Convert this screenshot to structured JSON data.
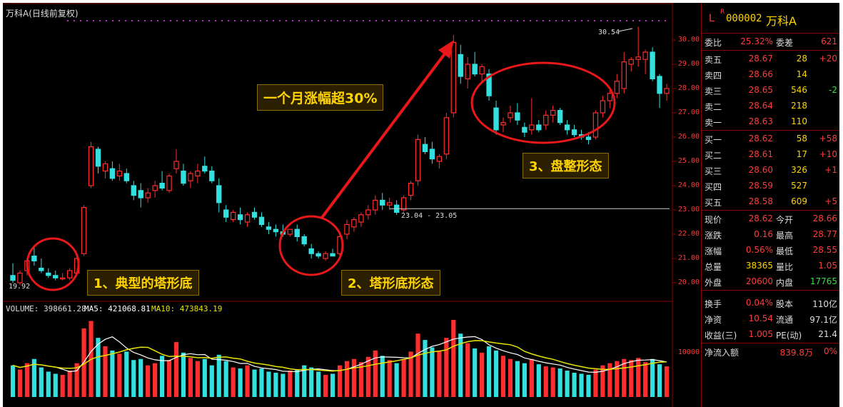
{
  "window_title": "万科A(日线前复权)",
  "callouts": {
    "rise": "一个月涨幅超30%",
    "pattern1": "1、典型的塔形底",
    "pattern2": "2、塔形底形态",
    "pattern3": "3、盘整形态"
  },
  "annotations": {
    "low_price": "19.92",
    "high_price": "30.54",
    "range": "23.04 - 23.05"
  },
  "volume_line": {
    "volume": "VOLUME: 398661.28",
    "ma5": "MA5: 421068.81",
    "ma10": "MA10: 473843.19"
  },
  "colors": {
    "up": "#ff2d2d",
    "down": "#33e0e0",
    "ma5": "#ffffff",
    "ma10": "#e5e500",
    "callout_text": "#ffd400",
    "ellipse": "#e8171a",
    "arrow": "#e8171a"
  },
  "chart_data": {
    "type": "candlestick",
    "price_axis": {
      "range": [
        19.5,
        30.5
      ],
      "ticks": [
        "30.00",
        "29.00",
        "28.00",
        "27.00",
        "26.00",
        "25.00",
        "24.00",
        "23.00",
        "22.00",
        "21.00",
        "20.00"
      ]
    },
    "volume_axis": {
      "ticks": [
        "10000"
      ]
    },
    "candles": [
      {
        "o": 20.3,
        "h": 20.8,
        "l": 20.0,
        "c": 20.1
      },
      {
        "o": 20.0,
        "h": 20.5,
        "l": 19.9,
        "c": 20.4
      },
      {
        "o": 20.5,
        "h": 21.0,
        "l": 20.3,
        "c": 20.9
      },
      {
        "o": 21.1,
        "h": 21.5,
        "l": 20.7,
        "c": 20.9
      },
      {
        "o": 20.6,
        "h": 21.0,
        "l": 20.4,
        "c": 20.5
      },
      {
        "o": 20.4,
        "h": 20.6,
        "l": 20.2,
        "c": 20.3
      },
      {
        "o": 20.3,
        "h": 20.5,
        "l": 20.1,
        "c": 20.2
      },
      {
        "o": 20.2,
        "h": 20.4,
        "l": 20.1,
        "c": 20.2
      },
      {
        "o": 20.2,
        "h": 20.6,
        "l": 20.1,
        "c": 20.5
      },
      {
        "o": 20.4,
        "h": 21.1,
        "l": 20.3,
        "c": 21.0
      },
      {
        "o": 21.2,
        "h": 23.2,
        "l": 21.1,
        "c": 23.1
      },
      {
        "o": 24.0,
        "h": 25.8,
        "l": 23.9,
        "c": 25.6
      },
      {
        "o": 25.5,
        "h": 25.6,
        "l": 24.5,
        "c": 24.8
      },
      {
        "o": 24.6,
        "h": 25.0,
        "l": 24.3,
        "c": 24.9
      },
      {
        "o": 24.7,
        "h": 25.0,
        "l": 24.2,
        "c": 24.3
      },
      {
        "o": 24.4,
        "h": 24.9,
        "l": 24.2,
        "c": 24.6
      },
      {
        "o": 24.5,
        "h": 24.7,
        "l": 24.1,
        "c": 24.2
      },
      {
        "o": 24.0,
        "h": 24.2,
        "l": 23.4,
        "c": 23.6
      },
      {
        "o": 23.8,
        "h": 24.1,
        "l": 23.1,
        "c": 23.5
      },
      {
        "o": 23.5,
        "h": 23.9,
        "l": 23.3,
        "c": 23.7
      },
      {
        "o": 23.8,
        "h": 24.2,
        "l": 23.5,
        "c": 24.0
      },
      {
        "o": 24.1,
        "h": 24.6,
        "l": 23.8,
        "c": 23.9
      },
      {
        "o": 23.8,
        "h": 24.5,
        "l": 23.7,
        "c": 24.4
      },
      {
        "o": 24.7,
        "h": 25.5,
        "l": 24.5,
        "c": 25.0
      },
      {
        "o": 24.6,
        "h": 24.9,
        "l": 24.0,
        "c": 24.1
      },
      {
        "o": 24.2,
        "h": 24.6,
        "l": 23.9,
        "c": 24.5
      },
      {
        "o": 24.4,
        "h": 24.9,
        "l": 24.1,
        "c": 24.6
      },
      {
        "o": 24.8,
        "h": 25.2,
        "l": 24.5,
        "c": 24.6
      },
      {
        "o": 24.6,
        "h": 24.8,
        "l": 24.1,
        "c": 24.2
      },
      {
        "o": 24.0,
        "h": 24.3,
        "l": 22.9,
        "c": 23.3
      },
      {
        "o": 23.0,
        "h": 23.2,
        "l": 22.5,
        "c": 22.7
      },
      {
        "o": 22.6,
        "h": 23.0,
        "l": 22.5,
        "c": 22.9
      },
      {
        "o": 22.8,
        "h": 23.1,
        "l": 22.4,
        "c": 22.6
      },
      {
        "o": 22.5,
        "h": 22.9,
        "l": 22.3,
        "c": 22.8
      },
      {
        "o": 22.9,
        "h": 23.1,
        "l": 22.6,
        "c": 22.7
      },
      {
        "o": 22.7,
        "h": 22.9,
        "l": 22.3,
        "c": 22.4
      },
      {
        "o": 22.3,
        "h": 22.5,
        "l": 22.0,
        "c": 22.2
      },
      {
        "o": 22.2,
        "h": 22.4,
        "l": 21.9,
        "c": 22.1
      },
      {
        "o": 22.1,
        "h": 22.4,
        "l": 21.9,
        "c": 22.0
      },
      {
        "o": 22.0,
        "h": 22.2,
        "l": 21.9,
        "c": 22.2
      },
      {
        "o": 22.2,
        "h": 22.4,
        "l": 21.7,
        "c": 21.9
      },
      {
        "o": 21.9,
        "h": 22.0,
        "l": 21.5,
        "c": 21.6
      },
      {
        "o": 21.4,
        "h": 21.6,
        "l": 21.0,
        "c": 21.2
      },
      {
        "o": 21.2,
        "h": 21.3,
        "l": 21.0,
        "c": 21.1
      },
      {
        "o": 21.0,
        "h": 21.3,
        "l": 20.9,
        "c": 21.2
      },
      {
        "o": 21.2,
        "h": 21.4,
        "l": 21.1,
        "c": 21.1
      },
      {
        "o": 21.2,
        "h": 22.0,
        "l": 21.1,
        "c": 21.9
      },
      {
        "o": 22.0,
        "h": 22.6,
        "l": 21.8,
        "c": 22.4
      },
      {
        "o": 22.3,
        "h": 22.7,
        "l": 22.1,
        "c": 22.6
      },
      {
        "o": 22.5,
        "h": 22.9,
        "l": 22.3,
        "c": 22.8
      },
      {
        "o": 22.8,
        "h": 23.2,
        "l": 22.6,
        "c": 23.0
      },
      {
        "o": 23.0,
        "h": 23.6,
        "l": 22.8,
        "c": 23.4
      },
      {
        "o": 23.4,
        "h": 23.7,
        "l": 23.0,
        "c": 23.2
      },
      {
        "o": 23.2,
        "h": 23.5,
        "l": 23.0,
        "c": 23.3
      },
      {
        "o": 23.2,
        "h": 23.4,
        "l": 22.8,
        "c": 22.9
      },
      {
        "o": 23.0,
        "h": 23.6,
        "l": 22.9,
        "c": 23.5
      },
      {
        "o": 23.6,
        "h": 24.2,
        "l": 23.4,
        "c": 24.1
      },
      {
        "o": 24.2,
        "h": 26.1,
        "l": 24.0,
        "c": 25.9
      },
      {
        "o": 25.7,
        "h": 26.0,
        "l": 25.3,
        "c": 25.4
      },
      {
        "o": 25.5,
        "h": 25.8,
        "l": 24.9,
        "c": 25.1
      },
      {
        "o": 25.0,
        "h": 25.3,
        "l": 24.7,
        "c": 25.2
      },
      {
        "o": 25.3,
        "h": 27.0,
        "l": 25.1,
        "c": 26.8
      },
      {
        "o": 27.0,
        "h": 30.2,
        "l": 26.8,
        "c": 29.9
      },
      {
        "o": 29.4,
        "h": 29.8,
        "l": 28.2,
        "c": 28.5
      },
      {
        "o": 28.4,
        "h": 29.3,
        "l": 28.0,
        "c": 29.0
      },
      {
        "o": 29.0,
        "h": 29.5,
        "l": 28.5,
        "c": 28.6
      },
      {
        "o": 28.6,
        "h": 29.0,
        "l": 28.2,
        "c": 28.9
      },
      {
        "o": 28.6,
        "h": 28.8,
        "l": 27.5,
        "c": 27.7
      },
      {
        "o": 27.2,
        "h": 27.5,
        "l": 26.1,
        "c": 26.3
      },
      {
        "o": 26.5,
        "h": 26.8,
        "l": 26.2,
        "c": 26.6
      },
      {
        "o": 26.8,
        "h": 27.3,
        "l": 26.6,
        "c": 27.0
      },
      {
        "o": 27.0,
        "h": 27.4,
        "l": 26.5,
        "c": 26.7
      },
      {
        "o": 26.4,
        "h": 26.6,
        "l": 26.0,
        "c": 26.2
      },
      {
        "o": 26.3,
        "h": 27.6,
        "l": 26.1,
        "c": 26.5
      },
      {
        "o": 26.5,
        "h": 26.7,
        "l": 26.2,
        "c": 26.3
      },
      {
        "o": 26.5,
        "h": 27.1,
        "l": 26.3,
        "c": 26.9
      },
      {
        "o": 26.9,
        "h": 27.3,
        "l": 26.6,
        "c": 27.1
      },
      {
        "o": 27.1,
        "h": 27.2,
        "l": 26.5,
        "c": 26.6
      },
      {
        "o": 26.5,
        "h": 26.7,
        "l": 26.1,
        "c": 26.3
      },
      {
        "o": 26.3,
        "h": 26.5,
        "l": 26.0,
        "c": 26.1
      },
      {
        "o": 26.1,
        "h": 26.3,
        "l": 25.9,
        "c": 26.0
      },
      {
        "o": 26.0,
        "h": 26.2,
        "l": 25.7,
        "c": 25.9
      },
      {
        "o": 26.0,
        "h": 27.1,
        "l": 25.9,
        "c": 27.0
      },
      {
        "o": 27.0,
        "h": 27.7,
        "l": 26.8,
        "c": 27.5
      },
      {
        "o": 27.5,
        "h": 28.0,
        "l": 27.2,
        "c": 27.8
      },
      {
        "o": 27.8,
        "h": 28.6,
        "l": 27.6,
        "c": 28.3
      },
      {
        "o": 28.0,
        "h": 29.5,
        "l": 27.8,
        "c": 29.1
      },
      {
        "o": 29.0,
        "h": 29.3,
        "l": 28.7,
        "c": 29.2
      },
      {
        "o": 29.2,
        "h": 30.54,
        "l": 28.9,
        "c": 29.3
      },
      {
        "o": 29.2,
        "h": 29.6,
        "l": 28.6,
        "c": 29.5
      },
      {
        "o": 29.5,
        "h": 29.7,
        "l": 28.3,
        "c": 28.4
      },
      {
        "o": 28.5,
        "h": 28.6,
        "l": 27.2,
        "c": 27.8
      },
      {
        "o": 27.8,
        "h": 28.2,
        "l": 27.5,
        "c": 28.0
      }
    ],
    "volumes": [
      3,
      2.6,
      3.2,
      3.6,
      2.8,
      2.4,
      2.2,
      2.1,
      2.5,
      3.2,
      6.5,
      7.2,
      5.6,
      4.8,
      4.4,
      4.1,
      4.3,
      3.5,
      3.6,
      3.0,
      3.2,
      3.9,
      3.5,
      5.2,
      4.2,
      3.7,
      3.4,
      3.6,
      3.0,
      4.0,
      3.4,
      2.8,
      2.7,
      3.0,
      2.6,
      2.7,
      2.4,
      2.3,
      2.2,
      2.5,
      2.6,
      3.0,
      2.8,
      2.4,
      2.1,
      2.2,
      3.0,
      3.4,
      3.6,
      3.3,
      3.8,
      4.4,
      3.9,
      3.5,
      3.2,
      3.6,
      4.3,
      6.0,
      5.4,
      4.7,
      4.4,
      5.6,
      7.3,
      6.0,
      5.1,
      4.6,
      4.2,
      4.8,
      4.4,
      3.9,
      3.6,
      3.4,
      3.2,
      3.6,
      3.1,
      2.9,
      2.8,
      2.7,
      2.5,
      2.3,
      2.2,
      2.1,
      2.6,
      3.0,
      3.2,
      3.4,
      3.6,
      3.5,
      3.7,
      3.3,
      3.6,
      3.1,
      2.9
    ]
  },
  "quote_panel": {
    "code": "000002",
    "name": "万科A",
    "l_mark": "L",
    "r_mark": "R",
    "commission": {
      "label1": "委比",
      "value1": "25.32%",
      "label2": "委差",
      "value2": "621"
    },
    "asks": [
      {
        "label": "卖五",
        "price": "28.67",
        "vol": "28",
        "chg": "+20"
      },
      {
        "label": "卖四",
        "price": "28.66",
        "vol": "14",
        "chg": ""
      },
      {
        "label": "卖三",
        "price": "28.65",
        "vol": "546",
        "chg": "-2"
      },
      {
        "label": "卖二",
        "price": "28.64",
        "vol": "218",
        "chg": ""
      },
      {
        "label": "卖一",
        "price": "28.63",
        "vol": "110",
        "chg": ""
      }
    ],
    "bids": [
      {
        "label": "买一",
        "price": "28.62",
        "vol": "58",
        "chg": "+58"
      },
      {
        "label": "买二",
        "price": "28.61",
        "vol": "17",
        "chg": "+10"
      },
      {
        "label": "买三",
        "price": "28.60",
        "vol": "326",
        "chg": "+1"
      },
      {
        "label": "买四",
        "price": "28.59",
        "vol": "527",
        "chg": ""
      },
      {
        "label": "买五",
        "price": "28.58",
        "vol": "609",
        "chg": "+5"
      }
    ],
    "stats1": [
      {
        "l1": "现价",
        "v1": "28.62",
        "l2": "今开",
        "v2": "28.66"
      },
      {
        "l1": "涨跌",
        "v1": "0.16",
        "l2": "最高",
        "v2": "28.77"
      },
      {
        "l1": "涨幅",
        "v1": "0.56%",
        "l2": "最低",
        "v2": "28.55"
      },
      {
        "l1": "总量",
        "v1": "38365",
        "l2": "量比",
        "v2": "1.05"
      },
      {
        "l1": "外盘",
        "v1": "20600",
        "l2": "内盘",
        "v2": "17765"
      }
    ],
    "stats2": [
      {
        "l1": "换手",
        "v1": "0.04%",
        "l2": "股本",
        "v2": "110亿"
      },
      {
        "l1": "净资",
        "v1": "10.54",
        "l2": "流通",
        "v2": "97.1亿"
      },
      {
        "l1": "收益(三)",
        "v1": "1.005",
        "l2": "PE(动)",
        "v2": "21.4"
      }
    ],
    "footer": {
      "label": "净流入额",
      "value": "839.8万",
      "pct": "0%"
    }
  }
}
